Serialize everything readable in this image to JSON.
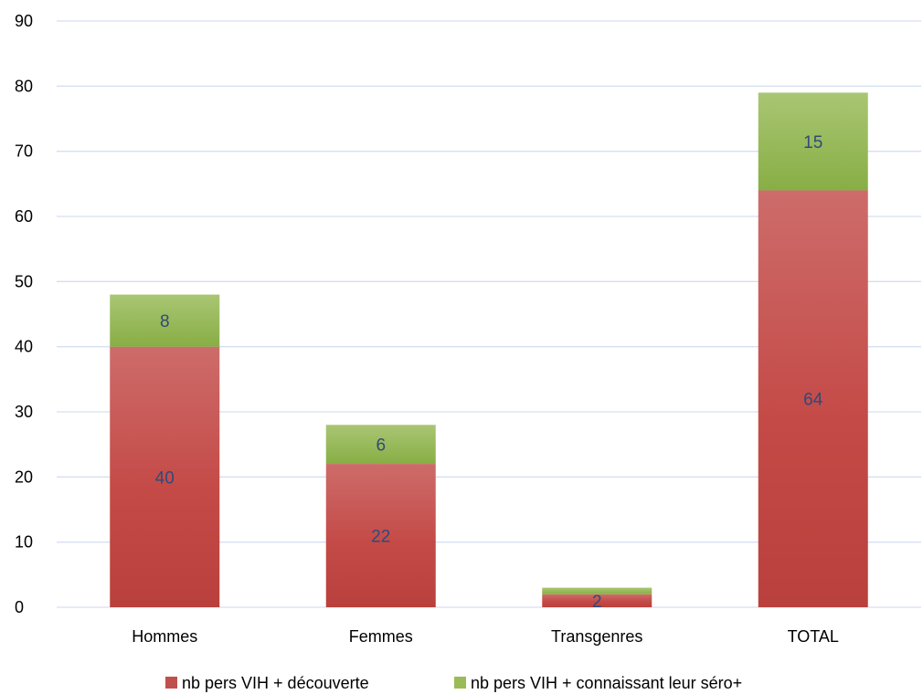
{
  "chart_data": {
    "type": "bar",
    "stacked": true,
    "categories": [
      "Hommes",
      "Femmes",
      "Transgenres",
      "TOTAL"
    ],
    "series": [
      {
        "name": "nb pers VIH + découverte",
        "values": [
          40,
          22,
          2,
          64
        ],
        "color": "#c0504d"
      },
      {
        "name": "nb pers VIH + connaissant leur séro+",
        "values": [
          8,
          6,
          1,
          15
        ],
        "color": "#9bbb59"
      }
    ],
    "data_labels": [
      [
        "40",
        "22",
        "2",
        "64"
      ],
      [
        "8",
        "6",
        "",
        "15"
      ]
    ],
    "ylim": [
      0,
      90
    ],
    "yticks": [
      0,
      10,
      20,
      30,
      40,
      50,
      60,
      70,
      80,
      90
    ],
    "grid": true,
    "legend_position": "bottom",
    "title": "",
    "xlabel": "",
    "ylabel": ""
  }
}
